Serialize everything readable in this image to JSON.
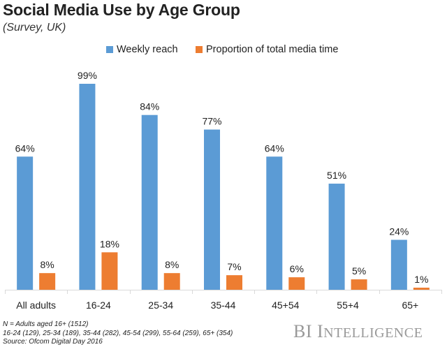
{
  "chart_data": {
    "type": "bar",
    "title": "Social Media Use by Age Group",
    "subtitle": "(Survey, UK)",
    "xlabel": "",
    "ylabel": "",
    "ylim": [
      0,
      100
    ],
    "grid": false,
    "legend_position": "top-center",
    "categories": [
      "All adults",
      "16-24",
      "25-34",
      "35-44",
      "45+54",
      "55+4",
      "65+"
    ],
    "series": [
      {
        "name": "Weekly reach",
        "color": "#5b9bd5",
        "values": [
          64,
          99,
          84,
          77,
          64,
          51,
          24
        ],
        "labels": [
          "64%",
          "99%",
          "84%",
          "77%",
          "64%",
          "51%",
          "24%"
        ]
      },
      {
        "name": "Proportion of total media time",
        "color": "#ed7d31",
        "values": [
          8,
          18,
          8,
          7,
          6,
          5,
          1
        ],
        "labels": [
          "8%",
          "18%",
          "8%",
          "7%",
          "6%",
          "5%",
          "1%"
        ]
      }
    ]
  },
  "notes": [
    "N = Adults aged 16+ (1512)",
    "16-24 (129), 25-34 (189), 35-44 (282), 45-54 (299), 55-64 (259), 65+ (354)",
    "Source: Ofcom Digital Day 2016"
  ],
  "brand": {
    "first": "BI",
    "second_initial": "I",
    "second_rest": "NTELLIGENCE"
  }
}
